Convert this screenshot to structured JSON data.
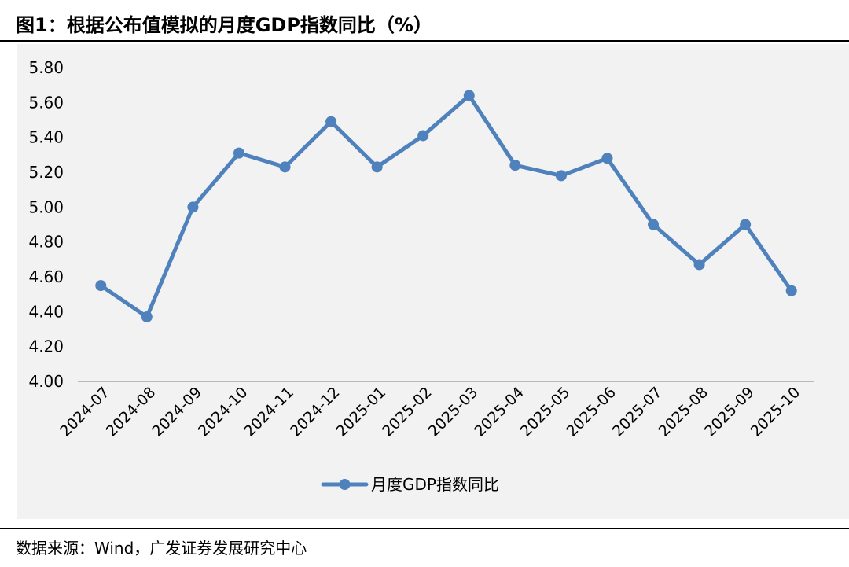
{
  "figure": {
    "title": "图1：根据公布值模拟的月度GDP指数同比（%）",
    "source": "数据来源：Wind，广发证券发展研究中心"
  },
  "chart_data": {
    "type": "line",
    "title": "",
    "xlabel": "",
    "ylabel": "",
    "ylim": [
      4.0,
      5.8
    ],
    "yticks": [
      "4.00",
      "4.20",
      "4.40",
      "4.60",
      "4.80",
      "5.00",
      "5.20",
      "5.40",
      "5.60",
      "5.80"
    ],
    "categories": [
      "2024-07",
      "2024-08",
      "2024-09",
      "2024-10",
      "2024-11",
      "2024-12",
      "2025-01",
      "2025-02",
      "2025-03",
      "2025-04",
      "2025-05",
      "2025-06",
      "2025-07",
      "2025-08",
      "2025-09",
      "2025-10"
    ],
    "series": [
      {
        "name": "月度GDP指数同比",
        "color": "#4f81bd",
        "values": [
          4.55,
          4.37,
          5.0,
          5.31,
          5.23,
          5.49,
          5.23,
          5.41,
          5.64,
          5.24,
          5.18,
          5.28,
          4.9,
          4.67,
          4.9,
          4.52
        ]
      }
    ],
    "grid": false,
    "legend_position": "bottom"
  }
}
